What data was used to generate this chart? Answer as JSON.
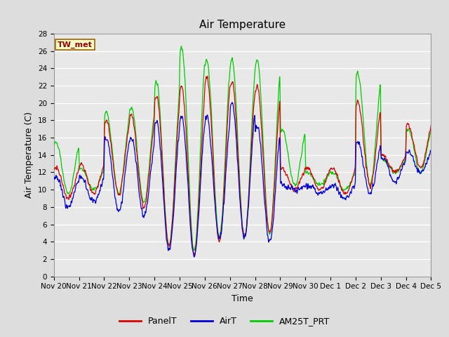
{
  "title": "Air Temperature",
  "ylabel": "Air Temperature (C)",
  "xlabel": "Time",
  "annotation_text": "TW_met",
  "annotation_bg": "#ffffcc",
  "annotation_border": "#996600",
  "annotation_text_color": "#990000",
  "ylim": [
    0,
    28
  ],
  "yticks": [
    0,
    2,
    4,
    6,
    8,
    10,
    12,
    14,
    16,
    18,
    20,
    22,
    24,
    26,
    28
  ],
  "bg_color": "#dddddd",
  "plot_bg": "#e8e8e8",
  "grid_color": "#ffffff",
  "line_colors": {
    "PanelT": "#dd0000",
    "AirT": "#0000dd",
    "AM25T_PRT": "#00cc00"
  },
  "line_width": 0.9,
  "title_fontsize": 11,
  "axis_label_fontsize": 9,
  "tick_label_fontsize": 7.5,
  "legend_fontsize": 9,
  "x_tick_labels": [
    "Nov 20",
    "Nov 21",
    "Nov 22",
    "Nov 23",
    "Nov 24",
    "Nov 25",
    "Nov 26",
    "Nov 27",
    "Nov 28",
    "Nov 29",
    "Nov 30",
    "Dec 1",
    "Dec 2",
    "Dec 3",
    "Dec 4",
    "Dec 5"
  ]
}
